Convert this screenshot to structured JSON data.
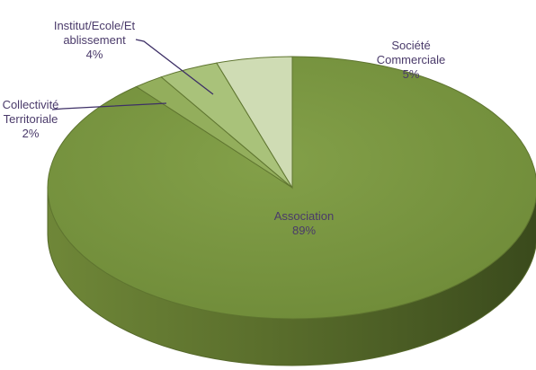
{
  "chart_data": {
    "type": "pie",
    "categories": [
      "Association",
      "Société Commerciale",
      "Institut/Ecole/Etablissement",
      "Collectivité Territoriale"
    ],
    "values": [
      89,
      5,
      4,
      2
    ],
    "labels": [
      {
        "name_lines": [
          "Association"
        ],
        "pct": "89%"
      },
      {
        "name_lines": [
          "Société",
          "Commerciale"
        ],
        "pct": "5%"
      },
      {
        "name_lines": [
          "Institut/Ecole/Et",
          "ablissement"
        ],
        "pct": "4%"
      },
      {
        "name_lines": [
          "Collectivité",
          "Territoriale"
        ],
        "pct": "2%"
      }
    ],
    "colors": [
      "#7a9440",
      "#cfdcb4",
      "#a9c27a",
      "#93ae5c"
    ],
    "legend": "none",
    "style": "3d-pie"
  }
}
